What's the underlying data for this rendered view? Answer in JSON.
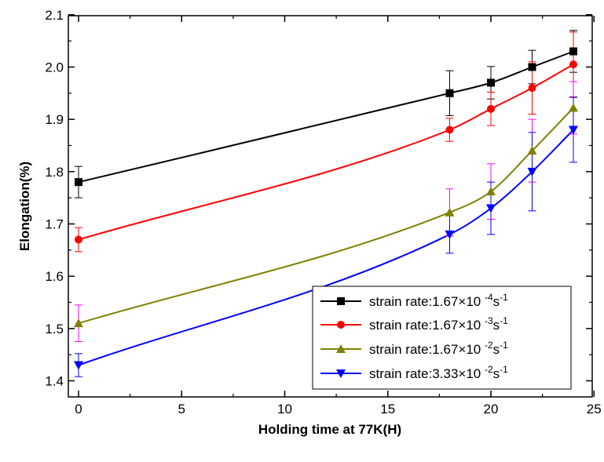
{
  "chart_data": {
    "type": "line",
    "xlabel": "Holding time at 77K(H)",
    "ylabel": "Elongation(%)",
    "xlim": [
      -0.5,
      25
    ],
    "ylim": [
      1.36,
      2.1
    ],
    "xticks": [
      0,
      5,
      10,
      15,
      20,
      25
    ],
    "yticks": [
      1.4,
      1.5,
      1.6,
      1.7,
      1.8,
      1.9,
      2.0,
      2.1
    ],
    "xtick_labels": [
      "0",
      "5",
      "10",
      "15",
      "20",
      "25"
    ],
    "ytick_labels": [
      "1.4",
      "1.5",
      "1.6",
      "1.7",
      "1.8",
      "1.9",
      "2.0",
      "2.1"
    ],
    "grid": false,
    "legend_position": "bottom-right",
    "x": [
      0,
      18,
      20,
      22,
      24
    ],
    "series": [
      {
        "name": "strain rate:1.67×10 -4s-1",
        "label_main": "strain rate:1.67×10",
        "label_exp": "-4",
        "label_unit": "s",
        "label_unit_exp": "-1",
        "marker": "square",
        "color": "#000000",
        "error_color": "#000000",
        "values": [
          1.78,
          1.95,
          1.97,
          2.0,
          2.03
        ],
        "errors": [
          0.03,
          0.043,
          0.031,
          0.032,
          0.04
        ]
      },
      {
        "name": "strain rate:1.67×10 -3s-1",
        "label_main": "strain rate:1.67×10",
        "label_exp": "-3",
        "label_unit": "s",
        "label_unit_exp": "-1",
        "marker": "circle",
        "color": "#ff0000",
        "error_color": "#ff0000",
        "values": [
          1.67,
          1.88,
          1.92,
          1.96,
          2.005
        ],
        "errors": [
          0.023,
          0.022,
          0.032,
          0.05,
          0.062
        ]
      },
      {
        "name": "strain rate:1.67×10 -2s-1",
        "label_main": "strain rate:1.67×10",
        "label_exp": "-2",
        "label_unit": "s",
        "label_unit_exp": "-1",
        "marker": "triangle-up",
        "color": "#808000",
        "error_color": "#ff00ff",
        "values": [
          1.51,
          1.722,
          1.762,
          1.84,
          1.922
        ],
        "errors": [
          0.035,
          0.045,
          0.053,
          0.06,
          0.05
        ]
      },
      {
        "name": "strain rate:3.33×10 -2s-1",
        "label_main": "strain rate:3.33×10",
        "label_exp": "-2",
        "label_unit": "s",
        "label_unit_exp": "-1",
        "marker": "triangle-down",
        "color": "#0000ff",
        "error_color": "#0000ff",
        "values": [
          1.43,
          1.68,
          1.73,
          1.8,
          1.88
        ],
        "errors": [
          0.022,
          0.036,
          0.05,
          0.075,
          0.062
        ]
      }
    ]
  }
}
